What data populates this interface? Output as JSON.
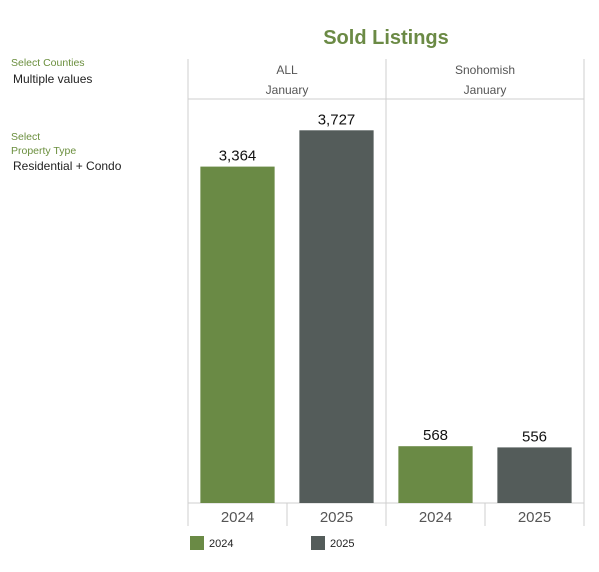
{
  "filters": {
    "counties": {
      "label": "Select Counties",
      "value": "Multiple values"
    },
    "property_type": {
      "label_line1": "Select",
      "label_line2": "Property Type",
      "value": "Residential + Condo"
    }
  },
  "colors": {
    "2024": "#6a8a45",
    "2025": "#545c5a",
    "accent": "#6b8a45"
  },
  "chart_data": {
    "type": "bar",
    "title": "Sold Listings",
    "panels": [
      {
        "name": "ALL",
        "month": "January",
        "categories": [
          "2024",
          "2025"
        ],
        "values": [
          3364,
          3727
        ],
        "labels": [
          "3,364",
          "3,727"
        ]
      },
      {
        "name": "Snohomish",
        "month": "January",
        "categories": [
          "2024",
          "2025"
        ],
        "values": [
          568,
          556
        ],
        "labels": [
          "568",
          "556"
        ]
      }
    ],
    "ylim": [
      0,
      3830
    ],
    "legend": [
      {
        "name": "2024"
      },
      {
        "name": "2025"
      }
    ],
    "legend_position": "bottom-left",
    "grid": false
  }
}
